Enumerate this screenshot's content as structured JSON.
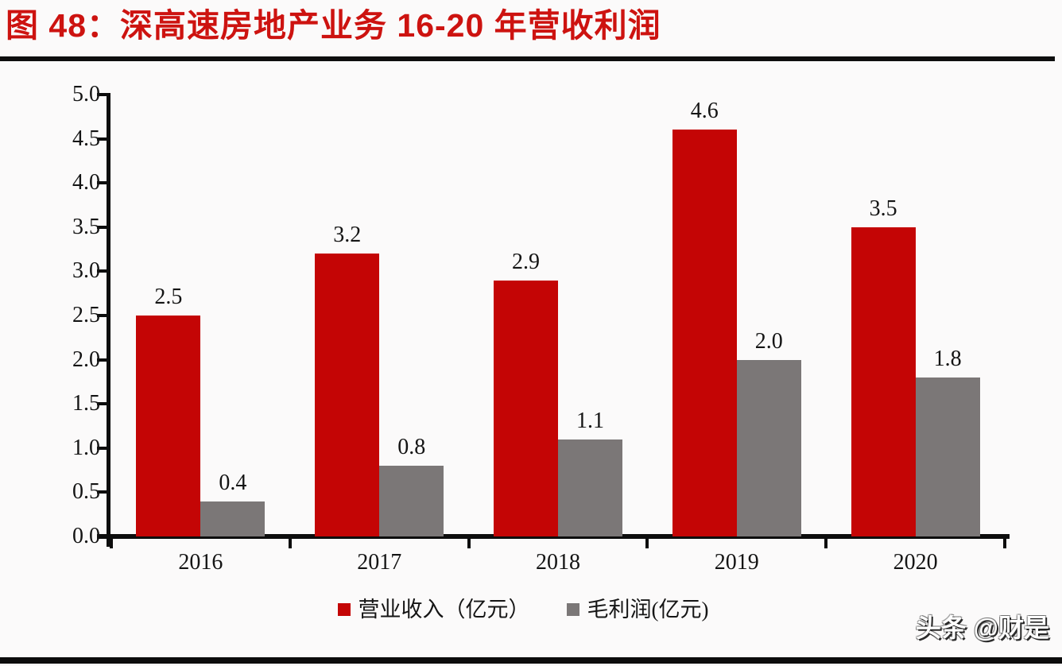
{
  "header": {
    "title": "图 48：深高速房地产业务 16-20 年营收利润",
    "title_color": "#cd1310"
  },
  "watermark": {
    "text": "头条 @财是"
  },
  "colors": {
    "revenue_red": "#c40505",
    "profit_gray": "#7b7777",
    "axis_black": "#0d0d0d",
    "background": "#fbfafa"
  },
  "chart_data": {
    "type": "bar",
    "title": "深高速房地产业务 16-20 年营收利润",
    "categories": [
      "2016",
      "2017",
      "2018",
      "2019",
      "2020"
    ],
    "series": [
      {
        "name": "营业收入（亿元）",
        "color": "#c40505",
        "values": [
          2.5,
          3.2,
          2.9,
          4.6,
          3.5
        ]
      },
      {
        "name": "毛利润(亿元)",
        "color": "#7b7777",
        "values": [
          0.4,
          0.8,
          1.1,
          2.0,
          1.8
        ]
      }
    ],
    "value_labels": [
      [
        "2.5",
        "3.2",
        "2.9",
        "4.6",
        "3.5"
      ],
      [
        "0.4",
        "0.8",
        "1.1",
        "2.0",
        "1.8"
      ]
    ],
    "xlabel": "",
    "ylabel": "",
    "ylim": [
      0,
      5
    ],
    "ytick_step": 0.5,
    "yticks": [
      "0.0",
      "0.5",
      "1.0",
      "1.5",
      "2.0",
      "2.5",
      "3.0",
      "3.5",
      "4.0",
      "4.5",
      "5.0"
    ],
    "grid": false,
    "legend_position": "bottom"
  }
}
